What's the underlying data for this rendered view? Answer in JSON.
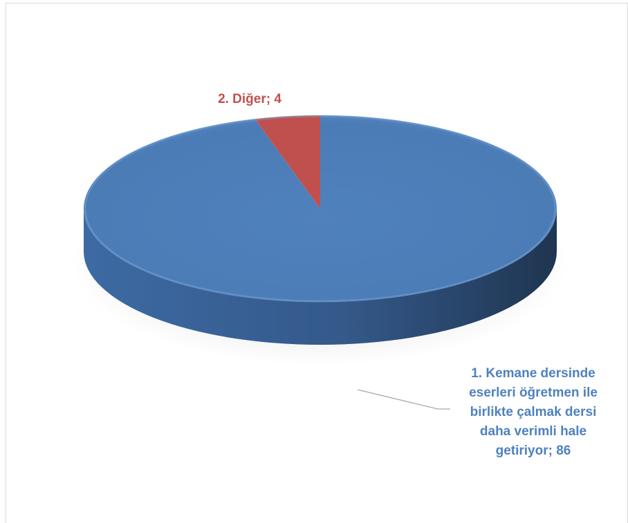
{
  "chart_data": {
    "type": "pie",
    "title": "",
    "style": "3d",
    "labels": [
      "1. Kemane dersinde eserleri öğretmen ile birlikte çalmak dersi daha verimli hale getiriyor; 86",
      "2. Diğer; 4"
    ],
    "values": [
      86,
      4
    ],
    "series": [
      {
        "slices": [
          {
            "category": "1. Kemane dersinde eserleri öğretmen ile birlikte çalmak dersi daha verimli hale getiriyor",
            "value": 86,
            "label_lines": [
              "1. Kemane dersinde",
              "eserleri öğretmen ile",
              "birlikte çalmak dersi",
              "daha verimli hale",
              "getiriyor; 86"
            ],
            "color": "#4f81bd",
            "side_color": "#3a5f8e",
            "label_color": "#4f81bd"
          },
          {
            "category": "2. Diğer",
            "value": 4,
            "label_lines": [
              "2. Diğer; 4"
            ],
            "color": "#c0504d",
            "side_color": "#8c3a37",
            "label_color": "#c0504d"
          }
        ]
      }
    ],
    "legend": "none",
    "leader_line_color": "#a6a6a6"
  }
}
